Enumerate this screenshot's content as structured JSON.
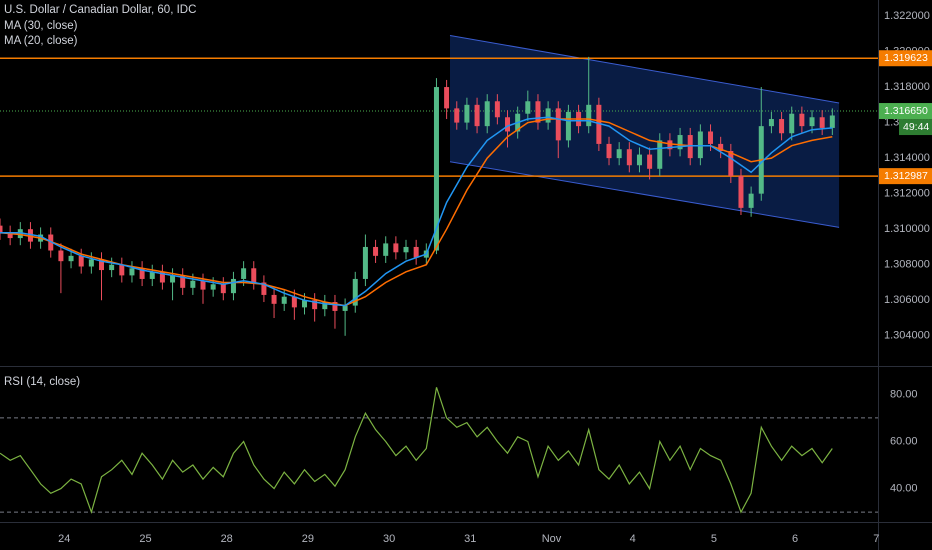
{
  "chart_data": [
    {
      "type": "candlestick",
      "title": "U.S. Dollar / Canadian Dollar, 60, IDC",
      "up_color": "#53b987",
      "down_color": "#eb4d5c",
      "xlim": [
        0,
        259.5
      ],
      "ylim": [
        1.3023,
        1.3229
      ],
      "yticks": [
        {
          "value": 1.322,
          "label": "1.322000"
        },
        {
          "value": 1.32,
          "label": "1.320000"
        },
        {
          "value": 1.318,
          "label": "1.318000"
        },
        {
          "value": 1.316,
          "label": "1.316000"
        },
        {
          "value": 1.314,
          "label": "1.314000"
        },
        {
          "value": 1.312,
          "label": "1.312000"
        },
        {
          "value": 1.31,
          "label": "1.310000"
        },
        {
          "value": 1.308,
          "label": "1.308000"
        },
        {
          "value": 1.306,
          "label": "1.306000"
        },
        {
          "value": 1.304,
          "label": "1.304000"
        }
      ],
      "x": [
        0,
        3,
        6,
        9,
        12,
        15,
        18,
        21,
        24,
        27,
        30,
        33,
        36,
        39,
        42,
        45,
        48,
        51,
        54,
        57,
        60,
        63,
        66,
        69,
        72,
        75,
        78,
        81,
        84,
        87,
        90,
        93,
        96,
        99,
        102,
        105,
        108,
        111,
        114,
        117,
        120,
        123,
        126,
        129,
        132,
        135,
        138,
        141,
        144,
        147,
        150,
        153,
        156,
        159,
        162,
        165,
        168,
        171,
        174,
        177,
        180,
        183,
        186,
        189,
        192,
        195,
        198,
        201,
        204,
        207,
        210,
        213,
        216,
        219,
        222,
        225,
        228,
        231,
        234,
        237,
        240,
        243,
        246
      ],
      "ohlc": [
        [
          1.3102,
          1.3106,
          1.3094,
          1.3098
        ],
        [
          1.3098,
          1.3102,
          1.3091,
          1.3095
        ],
        [
          1.3095,
          1.3104,
          1.3091,
          1.31
        ],
        [
          1.31,
          1.3104,
          1.3089,
          1.3093
        ],
        [
          1.3093,
          1.3101,
          1.3089,
          1.3097
        ],
        [
          1.3097,
          1.3101,
          1.3084,
          1.3088
        ],
        [
          1.3088,
          1.3092,
          1.3064,
          1.3082
        ],
        [
          1.3082,
          1.3089,
          1.3078,
          1.3085
        ],
        [
          1.3085,
          1.3089,
          1.3075,
          1.3079
        ],
        [
          1.3079,
          1.3087,
          1.3075,
          1.3083
        ],
        [
          1.3083,
          1.3087,
          1.306,
          1.3077
        ],
        [
          1.3077,
          1.3084,
          1.3073,
          1.308
        ],
        [
          1.308,
          1.3084,
          1.307,
          1.3074
        ],
        [
          1.3074,
          1.3082,
          1.307,
          1.3078
        ],
        [
          1.3078,
          1.3082,
          1.3068,
          1.3072
        ],
        [
          1.3072,
          1.308,
          1.3068,
          1.3076
        ],
        [
          1.3076,
          1.308,
          1.3066,
          1.307
        ],
        [
          1.307,
          1.3078,
          1.306,
          1.3074
        ],
        [
          1.3074,
          1.3078,
          1.3063,
          1.3067
        ],
        [
          1.3067,
          1.3075,
          1.3063,
          1.3071
        ],
        [
          1.3071,
          1.3075,
          1.3058,
          1.3066
        ],
        [
          1.3066,
          1.3073,
          1.3062,
          1.3069
        ],
        [
          1.3069,
          1.3073,
          1.306,
          1.3064
        ],
        [
          1.3064,
          1.3076,
          1.306,
          1.3072
        ],
        [
          1.3072,
          1.3082,
          1.3068,
          1.3078
        ],
        [
          1.3078,
          1.3082,
          1.3066,
          1.307
        ],
        [
          1.307,
          1.3074,
          1.3059,
          1.3063
        ],
        [
          1.3063,
          1.3067,
          1.305,
          1.3058
        ],
        [
          1.3058,
          1.3066,
          1.3054,
          1.3062
        ],
        [
          1.3062,
          1.3066,
          1.3049,
          1.3056
        ],
        [
          1.3056,
          1.3064,
          1.3052,
          1.306
        ],
        [
          1.306,
          1.3064,
          1.3048,
          1.3055
        ],
        [
          1.3055,
          1.3063,
          1.3051,
          1.3059
        ],
        [
          1.3059,
          1.3063,
          1.3044,
          1.3054
        ],
        [
          1.3054,
          1.3061,
          1.304,
          1.3057
        ],
        [
          1.3057,
          1.3076,
          1.3053,
          1.3072
        ],
        [
          1.3072,
          1.3097,
          1.3068,
          1.309
        ],
        [
          1.309,
          1.3094,
          1.3081,
          1.3085
        ],
        [
          1.3085,
          1.3096,
          1.3081,
          1.3092
        ],
        [
          1.3092,
          1.3096,
          1.3083,
          1.3087
        ],
        [
          1.3087,
          1.3094,
          1.3083,
          1.309
        ],
        [
          1.309,
          1.3094,
          1.308,
          1.3084
        ],
        [
          1.3084,
          1.3092,
          1.308,
          1.3088
        ],
        [
          1.3088,
          1.3185,
          1.3086,
          1.318
        ],
        [
          1.318,
          1.3184,
          1.3162,
          1.3168
        ],
        [
          1.3168,
          1.3172,
          1.3156,
          1.316
        ],
        [
          1.316,
          1.3174,
          1.3156,
          1.317
        ],
        [
          1.317,
          1.3174,
          1.3154,
          1.3158
        ],
        [
          1.3158,
          1.3176,
          1.3154,
          1.3172
        ],
        [
          1.3172,
          1.3176,
          1.3159,
          1.3163
        ],
        [
          1.3163,
          1.3167,
          1.3146,
          1.3155
        ],
        [
          1.3155,
          1.3169,
          1.3151,
          1.3165
        ],
        [
          1.3165,
          1.3178,
          1.3161,
          1.3172
        ],
        [
          1.3172,
          1.3176,
          1.3156,
          1.316
        ],
        [
          1.316,
          1.3172,
          1.3156,
          1.3168
        ],
        [
          1.3168,
          1.3172,
          1.314,
          1.315
        ],
        [
          1.315,
          1.317,
          1.3146,
          1.3166
        ],
        [
          1.3166,
          1.317,
          1.3154,
          1.3158
        ],
        [
          1.3158,
          1.3197,
          1.3154,
          1.317
        ],
        [
          1.317,
          1.3174,
          1.3144,
          1.3148
        ],
        [
          1.3148,
          1.3152,
          1.3136,
          1.314
        ],
        [
          1.314,
          1.3149,
          1.3136,
          1.3145
        ],
        [
          1.3145,
          1.3149,
          1.3132,
          1.3136
        ],
        [
          1.3136,
          1.3146,
          1.3132,
          1.3142
        ],
        [
          1.3142,
          1.3146,
          1.3128,
          1.3134
        ],
        [
          1.3134,
          1.3154,
          1.313,
          1.315
        ],
        [
          1.315,
          1.3154,
          1.3141,
          1.3145
        ],
        [
          1.3145,
          1.3157,
          1.3141,
          1.3153
        ],
        [
          1.3153,
          1.3157,
          1.3136,
          1.314
        ],
        [
          1.314,
          1.3159,
          1.3136,
          1.3155
        ],
        [
          1.3155,
          1.3159,
          1.3144,
          1.3148
        ],
        [
          1.3148,
          1.3152,
          1.314,
          1.3144
        ],
        [
          1.3144,
          1.3148,
          1.3126,
          1.313
        ],
        [
          1.313,
          1.3134,
          1.3108,
          1.3112
        ],
        [
          1.3112,
          1.3124,
          1.3107,
          1.312
        ],
        [
          1.312,
          1.318,
          1.3116,
          1.3158
        ],
        [
          1.3158,
          1.3166,
          1.3154,
          1.3162
        ],
        [
          1.3162,
          1.3166,
          1.315,
          1.3154
        ],
        [
          1.3154,
          1.3169,
          1.315,
          1.3165
        ],
        [
          1.3165,
          1.3169,
          1.3154,
          1.3158
        ],
        [
          1.3158,
          1.3167,
          1.3154,
          1.3163
        ],
        [
          1.3163,
          1.3167,
          1.3153,
          1.3157
        ],
        [
          1.3157,
          1.3168,
          1.3153,
          1.3164
        ]
      ],
      "series": [
        {
          "name": "MA (30, close)",
          "color": "#ff6d00",
          "x": [
            0,
            6,
            12,
            18,
            24,
            30,
            36,
            42,
            48,
            54,
            60,
            66,
            72,
            78,
            84,
            90,
            96,
            102,
            108,
            114,
            120,
            126,
            132,
            138,
            144,
            150,
            156,
            162,
            168,
            174,
            180,
            186,
            192,
            198,
            204,
            210,
            216,
            222,
            228,
            234,
            240,
            246
          ],
          "values": [
            1.3098,
            1.3097,
            1.3095,
            1.3091,
            1.3086,
            1.3083,
            1.308,
            1.3078,
            1.3076,
            1.3074,
            1.3072,
            1.307,
            1.307,
            1.3069,
            1.3066,
            1.3062,
            1.3059,
            1.3057,
            1.3062,
            1.307,
            1.3076,
            1.308,
            1.31,
            1.3122,
            1.314,
            1.3152,
            1.316,
            1.3162,
            1.3162,
            1.3162,
            1.316,
            1.3155,
            1.315,
            1.3148,
            1.3147,
            1.3147,
            1.3143,
            1.3138,
            1.314,
            1.3147,
            1.315,
            1.3152
          ]
        },
        {
          "name": "MA (20, close)",
          "color": "#2196f3",
          "x": [
            0,
            6,
            12,
            18,
            24,
            30,
            36,
            42,
            48,
            54,
            60,
            66,
            72,
            78,
            84,
            90,
            96,
            102,
            108,
            114,
            120,
            126,
            132,
            138,
            144,
            150,
            156,
            162,
            168,
            174,
            180,
            186,
            192,
            198,
            204,
            210,
            216,
            222,
            228,
            234,
            240,
            246
          ],
          "values": [
            1.3098,
            1.3098,
            1.3096,
            1.309,
            1.3085,
            1.3082,
            1.308,
            1.3077,
            1.3075,
            1.3073,
            1.3071,
            1.3069,
            1.3071,
            1.3069,
            1.3064,
            1.306,
            1.3058,
            1.3057,
            1.3065,
            1.3075,
            1.3082,
            1.3086,
            1.3115,
            1.3135,
            1.315,
            1.3158,
            1.3162,
            1.3163,
            1.3161,
            1.3161,
            1.3158,
            1.315,
            1.3145,
            1.3146,
            1.3147,
            1.3147,
            1.314,
            1.3132,
            1.3143,
            1.3152,
            1.3156,
            1.3157
          ]
        }
      ],
      "channel": {
        "x": [
          133,
          248
        ],
        "upper": [
          1.3209,
          1.3171
        ],
        "lower": [
          1.3138,
          1.3101
        ],
        "color": "#3a5cd0"
      },
      "levels": [
        {
          "value": 1.319623,
          "color": "#f57c00"
        },
        {
          "value": 1.312987,
          "color": "#f57c00"
        }
      ],
      "last_price": {
        "value": 1.31665,
        "label": "1.316650",
        "color": "#4caf50",
        "countdown": "49:44"
      }
    },
    {
      "type": "line",
      "title": "RSI (14, close)",
      "xlim": [
        0,
        259.5
      ],
      "ylim": [
        25.8,
        91.2
      ],
      "yticks": [
        {
          "value": 80,
          "label": "80.00"
        },
        {
          "value": 60,
          "label": "60.00"
        },
        {
          "value": 40,
          "label": "40.00"
        }
      ],
      "bands": [
        70,
        30
      ],
      "xticks": [
        {
          "value": 19,
          "label": "24"
        },
        {
          "value": 43,
          "label": "25"
        },
        {
          "value": 67,
          "label": "28"
        },
        {
          "value": 91,
          "label": "29"
        },
        {
          "value": 115,
          "label": "30"
        },
        {
          "value": 139,
          "label": "31"
        },
        {
          "value": 163,
          "label": "Nov"
        },
        {
          "value": 187,
          "label": "4"
        },
        {
          "value": 211,
          "label": "5"
        },
        {
          "value": 235,
          "label": "6"
        },
        {
          "value": 259,
          "label": "7"
        }
      ],
      "series": [
        {
          "color": "#7cb342",
          "x": [
            0,
            3,
            6,
            9,
            12,
            15,
            18,
            21,
            24,
            27,
            30,
            33,
            36,
            39,
            42,
            45,
            48,
            51,
            54,
            57,
            60,
            63,
            66,
            69,
            72,
            75,
            78,
            81,
            84,
            87,
            90,
            93,
            96,
            99,
            102,
            105,
            108,
            111,
            114,
            117,
            120,
            123,
            126,
            129,
            132,
            135,
            138,
            141,
            144,
            147,
            150,
            153,
            156,
            159,
            162,
            165,
            168,
            171,
            174,
            177,
            180,
            183,
            186,
            189,
            192,
            195,
            198,
            201,
            204,
            207,
            210,
            213,
            216,
            219,
            222,
            225,
            228,
            231,
            234,
            237,
            240,
            243,
            246
          ],
          "values": [
            55,
            52,
            54,
            48,
            42,
            38,
            40,
            44,
            42,
            30,
            45,
            48,
            52,
            46,
            55,
            50,
            44,
            52,
            47,
            50,
            44,
            49,
            45,
            55,
            60,
            50,
            44,
            40,
            47,
            42,
            48,
            43,
            46,
            41,
            48,
            62,
            72,
            65,
            60,
            54,
            58,
            52,
            57,
            83,
            70,
            66,
            68,
            62,
            66,
            60,
            55,
            62,
            60,
            45,
            58,
            52,
            56,
            50,
            65,
            48,
            44,
            50,
            42,
            47,
            40,
            60,
            52,
            58,
            48,
            57,
            54,
            52,
            42,
            30,
            38,
            66,
            58,
            52,
            58,
            54,
            57,
            51,
            57
          ]
        }
      ]
    }
  ]
}
